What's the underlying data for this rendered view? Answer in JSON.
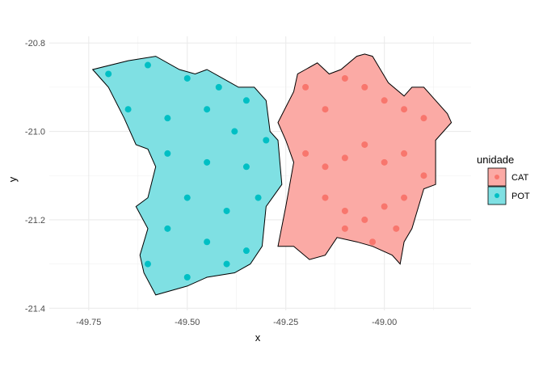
{
  "chart_data": {
    "type": "scatter",
    "xlabel": "x",
    "ylabel": "y",
    "xlim": [
      -49.85,
      -48.78
    ],
    "ylim": [
      -21.405,
      -20.785
    ],
    "x_ticks": [
      -49.75,
      -49.5,
      -49.25,
      -49.0
    ],
    "x_tick_labels": [
      "-49.75",
      "-49.50",
      "-49.25",
      "-49.00"
    ],
    "y_ticks": [
      -20.8,
      -21.0,
      -21.2,
      -21.4
    ],
    "y_tick_labels": [
      "-20.8",
      "-21.0",
      "-21.2",
      "-21.4"
    ],
    "grid": true,
    "legend": {
      "title": "unidade",
      "position": "right",
      "entries": [
        "CAT",
        "POT"
      ]
    },
    "series": [
      {
        "name": "CAT",
        "color": "#F8766D",
        "fill": "#FBAAA5",
        "region": [
          [
            -49.27,
            -20.98
          ],
          [
            -49.23,
            -20.91
          ],
          [
            -49.22,
            -20.87
          ],
          [
            -49.2,
            -20.86
          ],
          [
            -49.17,
            -20.845
          ],
          [
            -49.14,
            -20.87
          ],
          [
            -49.11,
            -20.86
          ],
          [
            -49.07,
            -20.83
          ],
          [
            -49.05,
            -20.825
          ],
          [
            -49.03,
            -20.83
          ],
          [
            -49.01,
            -20.86
          ],
          [
            -48.99,
            -20.89
          ],
          [
            -48.95,
            -20.92
          ],
          [
            -48.93,
            -20.9
          ],
          [
            -48.9,
            -20.9
          ],
          [
            -48.87,
            -20.93
          ],
          [
            -48.84,
            -20.96
          ],
          [
            -48.83,
            -20.98
          ],
          [
            -48.87,
            -21.02
          ],
          [
            -48.87,
            -21.12
          ],
          [
            -48.9,
            -21.13
          ],
          [
            -48.93,
            -21.22
          ],
          [
            -48.95,
            -21.25
          ],
          [
            -48.96,
            -21.3
          ],
          [
            -48.98,
            -21.28
          ],
          [
            -49.03,
            -21.26
          ],
          [
            -49.07,
            -21.25
          ],
          [
            -49.12,
            -21.24
          ],
          [
            -49.15,
            -21.28
          ],
          [
            -49.19,
            -21.29
          ],
          [
            -49.23,
            -21.26
          ],
          [
            -49.27,
            -21.26
          ],
          [
            -49.25,
            -21.17
          ],
          [
            -49.24,
            -21.12
          ],
          [
            -49.23,
            -21.07
          ],
          [
            -49.25,
            -21.02
          ],
          [
            -49.27,
            -20.98
          ]
        ],
        "points": [
          [
            -49.2,
            -20.9
          ],
          [
            -49.15,
            -20.95
          ],
          [
            -49.1,
            -20.88
          ],
          [
            -49.05,
            -20.9
          ],
          [
            -49.0,
            -20.93
          ],
          [
            -48.95,
            -20.95
          ],
          [
            -48.9,
            -20.97
          ],
          [
            -49.2,
            -21.05
          ],
          [
            -49.15,
            -21.08
          ],
          [
            -49.1,
            -21.06
          ],
          [
            -49.05,
            -21.03
          ],
          [
            -49.0,
            -21.07
          ],
          [
            -48.95,
            -21.05
          ],
          [
            -48.9,
            -21.1
          ],
          [
            -49.15,
            -21.15
          ],
          [
            -49.1,
            -21.18
          ],
          [
            -49.05,
            -21.2
          ],
          [
            -49.0,
            -21.17
          ],
          [
            -48.95,
            -21.15
          ],
          [
            -49.1,
            -21.22
          ],
          [
            -49.03,
            -21.25
          ],
          [
            -48.97,
            -21.22
          ]
        ]
      },
      {
        "name": "POT",
        "color": "#00BFC4",
        "fill": "#7FE0E3",
        "region": [
          [
            -49.74,
            -20.86
          ],
          [
            -49.65,
            -20.84
          ],
          [
            -49.58,
            -20.83
          ],
          [
            -49.52,
            -20.86
          ],
          [
            -49.48,
            -20.87
          ],
          [
            -49.45,
            -20.86
          ],
          [
            -49.41,
            -20.88
          ],
          [
            -49.37,
            -20.9
          ],
          [
            -49.33,
            -20.9
          ],
          [
            -49.3,
            -20.93
          ],
          [
            -49.29,
            -21.0
          ],
          [
            -49.27,
            -21.02
          ],
          [
            -49.26,
            -21.12
          ],
          [
            -49.3,
            -21.17
          ],
          [
            -49.31,
            -21.26
          ],
          [
            -49.34,
            -21.3
          ],
          [
            -49.38,
            -21.32
          ],
          [
            -49.45,
            -21.33
          ],
          [
            -49.5,
            -21.35
          ],
          [
            -49.58,
            -21.37
          ],
          [
            -49.61,
            -21.32
          ],
          [
            -49.62,
            -21.28
          ],
          [
            -49.6,
            -21.22
          ],
          [
            -49.63,
            -21.17
          ],
          [
            -49.6,
            -21.15
          ],
          [
            -49.58,
            -21.08
          ],
          [
            -49.6,
            -21.04
          ],
          [
            -49.63,
            -21.03
          ],
          [
            -49.66,
            -20.97
          ],
          [
            -49.7,
            -20.9
          ],
          [
            -49.74,
            -20.86
          ]
        ],
        "points": [
          [
            -49.7,
            -20.87
          ],
          [
            -49.6,
            -20.85
          ],
          [
            -49.5,
            -20.88
          ],
          [
            -49.42,
            -20.9
          ],
          [
            -49.35,
            -20.93
          ],
          [
            -49.65,
            -20.95
          ],
          [
            -49.55,
            -20.97
          ],
          [
            -49.45,
            -20.95
          ],
          [
            -49.38,
            -21.0
          ],
          [
            -49.3,
            -21.02
          ],
          [
            -49.55,
            -21.05
          ],
          [
            -49.45,
            -21.07
          ],
          [
            -49.35,
            -21.08
          ],
          [
            -49.5,
            -21.15
          ],
          [
            -49.4,
            -21.18
          ],
          [
            -49.32,
            -21.15
          ],
          [
            -49.55,
            -21.22
          ],
          [
            -49.45,
            -21.25
          ],
          [
            -49.35,
            -21.27
          ],
          [
            -49.6,
            -21.3
          ],
          [
            -49.5,
            -21.33
          ],
          [
            -49.4,
            -21.3
          ]
        ]
      }
    ]
  }
}
